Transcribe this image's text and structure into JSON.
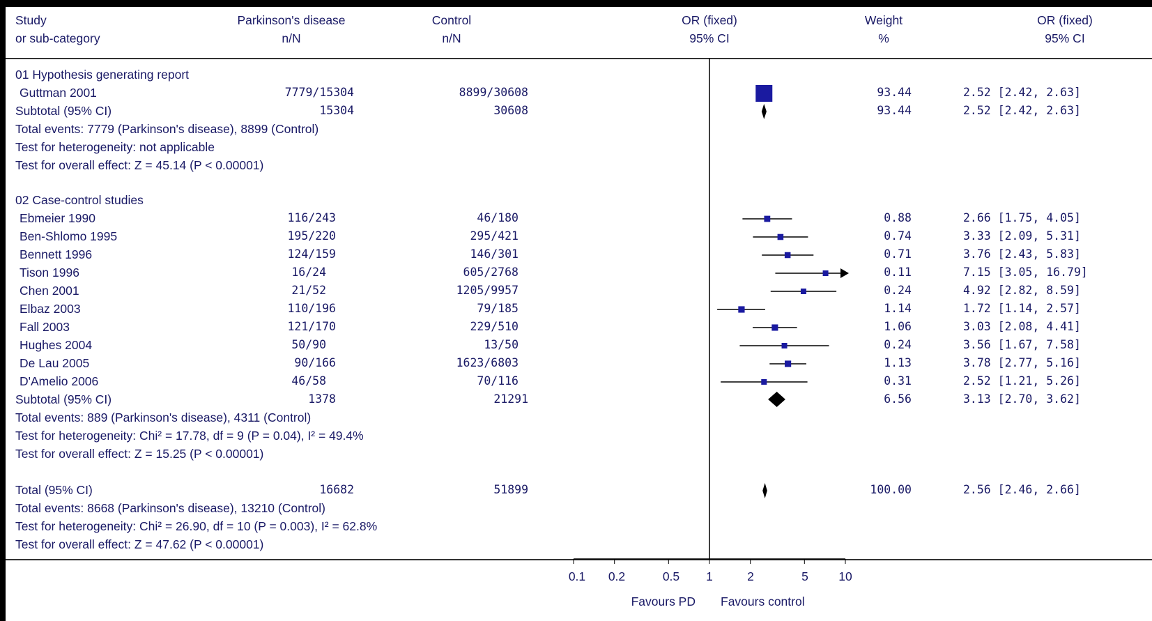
{
  "header": {
    "study_l1": "Study",
    "study_l2": "or sub-category",
    "pd_l1": "Parkinson's disease",
    "pd_l2": "n/N",
    "ctrl_l1": "Control",
    "ctrl_l2": "n/N",
    "or_l1": "OR (fixed)",
    "or_l2": "95% CI",
    "wt_l1": "Weight",
    "wt_l2": "%",
    "ci_l1": "OR (fixed)",
    "ci_l2": "95% CI"
  },
  "groups": [
    {
      "title": "01 Hypothesis generating report",
      "studies": [
        {
          "name": "Guttman 2001",
          "pd": "7779/15304",
          "ctrl": "8899/30608",
          "weight": "93.44",
          "ci": "2.52 [2.42, 2.63]"
        }
      ],
      "subtotal": {
        "label": "Subtotal (95% CI)",
        "pd": "15304",
        "ctrl": "30608",
        "weight": "93.44",
        "ci": "2.52 [2.42, 2.63]"
      },
      "notes": [
        "Total events: 7779 (Parkinson's disease), 8899 (Control)",
        "Test for heterogeneity: not applicable",
        "Test for overall effect: Z = 45.14 (P < 0.00001)"
      ]
    },
    {
      "title": "02 Case-control studies",
      "studies": [
        {
          "name": "Ebmeier 1990",
          "pd": "116/243",
          "ctrl": "46/180",
          "weight": "0.88",
          "ci": "2.66 [1.75, 4.05]"
        },
        {
          "name": "Ben-Shlomo 1995",
          "pd": "195/220",
          "ctrl": "295/421",
          "weight": "0.74",
          "ci": "3.33 [2.09, 5.31]"
        },
        {
          "name": "Bennett 1996",
          "pd": "124/159",
          "ctrl": "146/301",
          "weight": "0.71",
          "ci": "3.76 [2.43, 5.83]"
        },
        {
          "name": "Tison 1996",
          "pd": "16/24",
          "ctrl": "605/2768",
          "weight": "0.11",
          "ci": "7.15 [3.05, 16.79]"
        },
        {
          "name": "Chen 2001",
          "pd": "21/52",
          "ctrl": "1205/9957",
          "weight": "0.24",
          "ci": "4.92 [2.82, 8.59]"
        },
        {
          "name": "Elbaz 2003",
          "pd": "110/196",
          "ctrl": "79/185",
          "weight": "1.14",
          "ci": "1.72 [1.14, 2.57]"
        },
        {
          "name": "Fall 2003",
          "pd": "121/170",
          "ctrl": "229/510",
          "weight": "1.06",
          "ci": "3.03 [2.08, 4.41]"
        },
        {
          "name": "Hughes 2004",
          "pd": "50/90",
          "ctrl": "13/50",
          "weight": "0.24",
          "ci": "3.56 [1.67, 7.58]"
        },
        {
          "name": "De Lau 2005",
          "pd": "90/166",
          "ctrl": "1623/6803",
          "weight": "1.13",
          "ci": "3.78 [2.77, 5.16]"
        },
        {
          "name": "D'Amelio 2006",
          "pd": "46/58",
          "ctrl": "70/116",
          "weight": "0.31",
          "ci": "2.52 [1.21, 5.26]"
        }
      ],
      "subtotal": {
        "label": "Subtotal (95% CI)",
        "pd": "1378",
        "ctrl": "21291",
        "weight": "6.56",
        "ci": "3.13 [2.70, 3.62]"
      },
      "notes": [
        "Total events: 889 (Parkinson's disease), 4311 (Control)",
        "Test for heterogeneity: Chi² = 17.78, df = 9 (P = 0.04), I² = 49.4%",
        "Test for overall effect: Z = 15.25 (P < 0.00001)"
      ]
    }
  ],
  "total": {
    "label": "Total (95% CI)",
    "pd": "16682",
    "ctrl": "51899",
    "weight": "100.00",
    "ci": "2.56 [2.46, 2.66]",
    "notes": [
      "Total events: 8668 (Parkinson's disease), 13210 (Control)",
      "Test for heterogeneity: Chi² = 26.90, df = 10 (P = 0.003), I² = 62.8%",
      "Test for overall effect: Z = 47.62 (P < 0.00001)"
    ]
  },
  "axis": {
    "ticks": [
      "0.1",
      "0.2",
      "0.5",
      "1",
      "2",
      "5",
      "10"
    ],
    "favours_left": "Favours PD",
    "favours_right": "Favours control"
  },
  "chart_data": {
    "type": "forest",
    "scale": "log",
    "xlim": [
      0.1,
      10
    ],
    "reference": 1,
    "study_color": "#1a1aa0",
    "pooled_color": "#000000",
    "points": [
      {
        "label": "Guttman 2001",
        "or": 2.52,
        "lo": 2.42,
        "hi": 2.63,
        "weight": 93.44,
        "kind": "study"
      },
      {
        "label": "Subtotal (95% CI)",
        "or": 2.52,
        "lo": 2.42,
        "hi": 2.63,
        "kind": "pooled"
      },
      {
        "label": "Ebmeier 1990",
        "or": 2.66,
        "lo": 1.75,
        "hi": 4.05,
        "weight": 0.88,
        "kind": "study"
      },
      {
        "label": "Ben-Shlomo 1995",
        "or": 3.33,
        "lo": 2.09,
        "hi": 5.31,
        "weight": 0.74,
        "kind": "study"
      },
      {
        "label": "Bennett 1996",
        "or": 3.76,
        "lo": 2.43,
        "hi": 5.83,
        "weight": 0.71,
        "kind": "study"
      },
      {
        "label": "Tison 1996",
        "or": 7.15,
        "lo": 3.05,
        "hi": 16.79,
        "weight": 0.11,
        "kind": "study"
      },
      {
        "label": "Chen 2001",
        "or": 4.92,
        "lo": 2.82,
        "hi": 8.59,
        "weight": 0.24,
        "kind": "study"
      },
      {
        "label": "Elbaz 2003",
        "or": 1.72,
        "lo": 1.14,
        "hi": 2.57,
        "weight": 1.14,
        "kind": "study"
      },
      {
        "label": "Fall 2003",
        "or": 3.03,
        "lo": 2.08,
        "hi": 4.41,
        "weight": 1.06,
        "kind": "study"
      },
      {
        "label": "Hughes 2004",
        "or": 3.56,
        "lo": 1.67,
        "hi": 7.58,
        "weight": 0.24,
        "kind": "study"
      },
      {
        "label": "De Lau 2005",
        "or": 3.78,
        "lo": 2.77,
        "hi": 5.16,
        "weight": 1.13,
        "kind": "study"
      },
      {
        "label": "D'Amelio 2006",
        "or": 2.52,
        "lo": 1.21,
        "hi": 5.26,
        "weight": 0.31,
        "kind": "study"
      },
      {
        "label": "Subtotal (95% CI)",
        "or": 3.13,
        "lo": 2.7,
        "hi": 3.62,
        "kind": "pooled"
      },
      {
        "label": "Total (95% CI)",
        "or": 2.56,
        "lo": 2.46,
        "hi": 2.66,
        "kind": "pooled"
      }
    ]
  }
}
